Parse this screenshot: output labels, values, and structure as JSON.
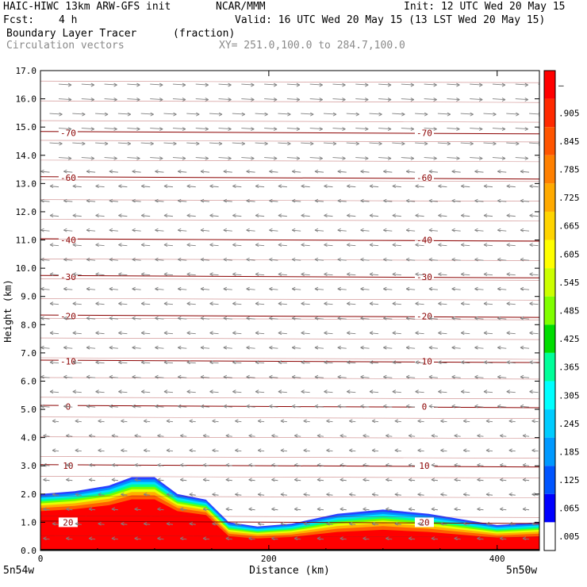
{
  "header": {
    "model_line": "HAIC-HIWC 13km ARW-GFS init",
    "org": "NCAR/MMM",
    "init": "Init: 12 UTC Wed 20 May 15",
    "fcst_label": "Fcst:",
    "fcst_value": "4 h",
    "valid": "Valid: 16 UTC Wed 20 May 15 (13 LST Wed 20 May 15)",
    "field_name": "Boundary Layer Tracer",
    "field_units": "(fraction)",
    "vectors_label": "Circulation vectors",
    "xy_label": "XY= 251.0,100.0 to 284.7,100.0"
  },
  "chart_data": {
    "type": "heatmap",
    "title": "Boundary Layer Tracer",
    "xlabel": "Distance (km)",
    "ylabel": "Height (km)",
    "xlim": [
      0,
      437
    ],
    "ylim": [
      0,
      17
    ],
    "x_ticks": [
      0,
      200,
      400
    ],
    "y_ticks": [
      "0.0",
      "1.0",
      "2.0",
      "3.0",
      "4.0",
      "5.0",
      "6.0",
      "7.0",
      "8.0",
      "9.0",
      "10.0",
      "11.0",
      "12.0",
      "13.0",
      "14.0",
      "15.0",
      "16.0",
      "17.0"
    ],
    "left_endpoint": "5n54w",
    "right_endpoint": "5n50w",
    "colorbar": {
      "labels": [
        "–",
        ".905",
        ".845",
        ".785",
        ".725",
        ".665",
        ".605",
        ".545",
        ".485",
        ".425",
        ".365",
        ".305",
        ".245",
        ".185",
        ".125",
        ".065",
        ".005"
      ],
      "colors": [
        "#ff0000",
        "#ff2a00",
        "#ff5500",
        "#ff8000",
        "#ffaa00",
        "#ffd400",
        "#ffff00",
        "#ccff00",
        "#80ff00",
        "#00dd00",
        "#00ff99",
        "#00ffff",
        "#00ccff",
        "#0099ff",
        "#0055ff",
        "#0000ff",
        "#ffffff"
      ]
    },
    "bl_top_height_km": {
      "x": [
        0,
        30,
        60,
        80,
        100,
        120,
        145,
        165,
        190,
        220,
        260,
        300,
        340,
        370,
        400,
        437
      ],
      "y": [
        2.0,
        2.1,
        2.3,
        2.6,
        2.6,
        2.0,
        1.8,
        1.0,
        0.85,
        0.95,
        1.3,
        1.45,
        1.3,
        1.1,
        0.9,
        1.0
      ]
    },
    "temperature_contours": [
      {
        "label": "-70",
        "height_km": 14.8
      },
      {
        "label": "-60",
        "height_km": 13.2
      },
      {
        "label": "-40",
        "height_km": 11.0
      },
      {
        "label": "-30",
        "height_km": 9.7
      },
      {
        "label": "-20",
        "height_km": 8.3
      },
      {
        "label": "-10",
        "height_km": 6.7
      },
      {
        "label": "0",
        "height_km": 5.1
      },
      {
        "label": "10",
        "height_km": 3.0
      },
      {
        "label": "20",
        "height_km": 1.0
      }
    ]
  }
}
